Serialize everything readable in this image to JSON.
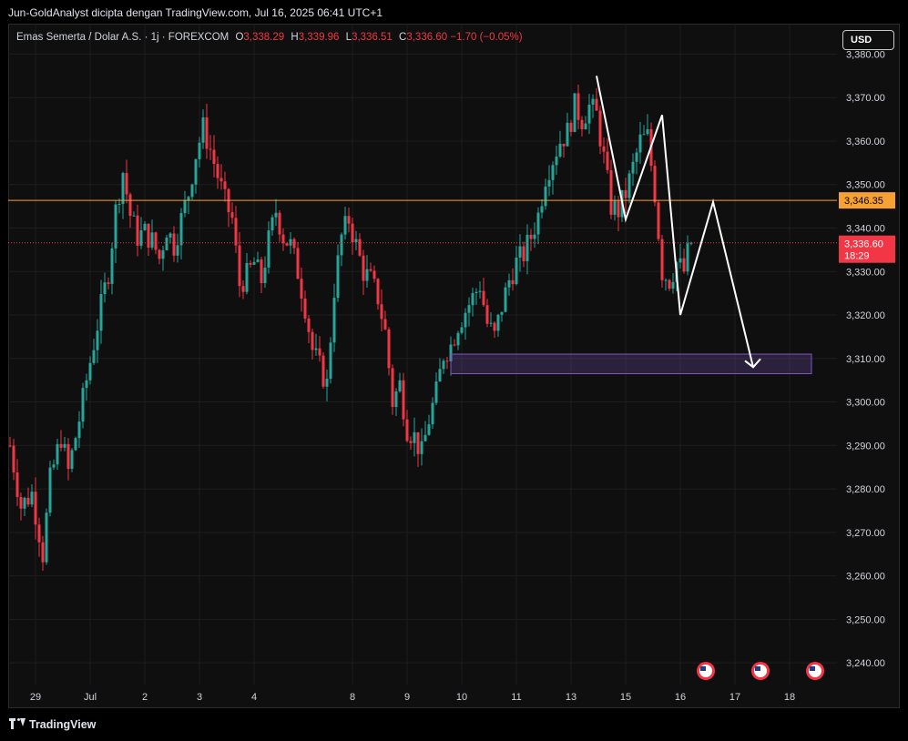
{
  "header": {
    "attribution": "Jun-GoldAnalyst dicipta dengan TradingView.com, Jul 16, 2025 06:41 UTC+1"
  },
  "legend": {
    "symbol": "Emas Semerta / Dolar A.S. · 1j · FOREXCOM",
    "o_label": "O",
    "o_value": "3,338.29",
    "h_label": "H",
    "h_value": "3,339.96",
    "l_label": "L",
    "l_value": "3,336.51",
    "c_label": "C",
    "c_value": "3,336.60",
    "change": "−1.70 (−0.05%)"
  },
  "currency_button": "USD",
  "footer": {
    "brand": "TradingView"
  },
  "colors": {
    "up": "#26a69a",
    "down": "#f23645",
    "grid": "#1e1e1e",
    "level_line": "#f7a034",
    "zone": "#7e57c2",
    "annotation": "#ffffff"
  },
  "chart_data": {
    "type": "candlestick",
    "symbol": "XAUUSD",
    "timeframe": "1h",
    "ylim": [
      3235,
      3387
    ],
    "y_ticks": [
      "3,240.00",
      "3,250.00",
      "3,260.00",
      "3,270.00",
      "3,280.00",
      "3,290.00",
      "3,300.00",
      "3,310.00",
      "3,320.00",
      "3,330.00",
      "3,340.00",
      "3,350.00",
      "3,360.00",
      "3,370.00",
      "3,380.00"
    ],
    "x_ticks": [
      {
        "label": "29",
        "i": 7
      },
      {
        "label": "Jul",
        "i": 22
      },
      {
        "label": "2",
        "i": 37
      },
      {
        "label": "3",
        "i": 52
      },
      {
        "label": "4",
        "i": 67
      },
      {
        "label": "8",
        "i": 94
      },
      {
        "label": "9",
        "i": 109
      },
      {
        "label": "10",
        "i": 124
      },
      {
        "label": "11",
        "i": 139
      },
      {
        "label": "13",
        "i": 154
      },
      {
        "label": "15",
        "i": 169
      },
      {
        "label": "16",
        "i": 184
      },
      {
        "label": "17",
        "i": 199
      },
      {
        "label": "18",
        "i": 214
      }
    ],
    "path": [
      [
        0,
        3290
      ],
      [
        3,
        3276
      ],
      [
        6,
        3279
      ],
      [
        8,
        3270
      ],
      [
        9,
        3265
      ],
      [
        11,
        3282
      ],
      [
        14,
        3292
      ],
      [
        16,
        3284
      ],
      [
        19,
        3296
      ],
      [
        21,
        3305
      ],
      [
        25,
        3322
      ],
      [
        27,
        3330
      ],
      [
        29,
        3344
      ],
      [
        31,
        3353
      ],
      [
        33,
        3343
      ],
      [
        35,
        3338
      ],
      [
        37,
        3339
      ],
      [
        39,
        3337
      ],
      [
        41,
        3333
      ],
      [
        43,
        3340
      ],
      [
        45,
        3336
      ],
      [
        47,
        3342
      ],
      [
        49,
        3348
      ],
      [
        51,
        3357
      ],
      [
        53,
        3363
      ],
      [
        55,
        3358
      ],
      [
        57,
        3352
      ],
      [
        59,
        3346
      ],
      [
        61,
        3342
      ],
      [
        63,
        3327
      ],
      [
        65,
        3329
      ],
      [
        67,
        3332
      ],
      [
        69,
        3328
      ],
      [
        71,
        3337
      ],
      [
        73,
        3344
      ],
      [
        75,
        3338
      ],
      [
        77,
        3336
      ],
      [
        79,
        3330
      ],
      [
        81,
        3322
      ],
      [
        83,
        3312
      ],
      [
        85,
        3308
      ],
      [
        87,
        3304
      ],
      [
        89,
        3326
      ],
      [
        91,
        3338
      ],
      [
        93,
        3342
      ],
      [
        95,
        3336
      ],
      [
        97,
        3330
      ],
      [
        99,
        3328
      ],
      [
        101,
        3324
      ],
      [
        103,
        3316
      ],
      [
        105,
        3300
      ],
      [
        107,
        3304
      ],
      [
        109,
        3294
      ],
      [
        111,
        3292
      ],
      [
        113,
        3288
      ],
      [
        115,
        3296
      ],
      [
        117,
        3302
      ],
      [
        119,
        3311
      ],
      [
        121,
        3313
      ],
      [
        123,
        3318
      ],
      [
        125,
        3321
      ],
      [
        127,
        3324
      ],
      [
        129,
        3327
      ],
      [
        131,
        3318
      ],
      [
        133,
        3315
      ],
      [
        135,
        3322
      ],
      [
        137,
        3328
      ],
      [
        139,
        3332
      ],
      [
        141,
        3334
      ],
      [
        143,
        3338
      ],
      [
        145,
        3343
      ],
      [
        147,
        3352
      ],
      [
        149,
        3356
      ],
      [
        151,
        3360
      ],
      [
        153,
        3362
      ],
      [
        155,
        3368
      ],
      [
        157,
        3365
      ],
      [
        159,
        3368
      ],
      [
        161,
        3366
      ],
      [
        163,
        3356
      ],
      [
        165,
        3345
      ],
      [
        167,
        3344
      ],
      [
        169,
        3348
      ],
      [
        171,
        3354
      ],
      [
        173,
        3360
      ],
      [
        175,
        3361
      ],
      [
        177,
        3348
      ],
      [
        179,
        3330
      ],
      [
        181,
        3328
      ],
      [
        183,
        3332
      ],
      [
        185,
        3330
      ],
      [
        186,
        3334
      ],
      [
        187,
        3336.6
      ]
    ],
    "last_price": 3336.6,
    "countdown": "18:29",
    "level_line": 3346.35,
    "level_label": "3,346.35",
    "last_label": "3,336.60",
    "zone": {
      "from_index": 121,
      "to_index": 220,
      "low": 3306.5,
      "high": 3311
    },
    "annotation_path": [
      [
        161,
        3375
      ],
      [
        169,
        3342
      ],
      [
        179,
        3366
      ],
      [
        184,
        3320
      ],
      [
        193,
        3346
      ],
      [
        204,
        3308
      ]
    ],
    "event_markers": [
      191,
      206,
      221
    ]
  }
}
